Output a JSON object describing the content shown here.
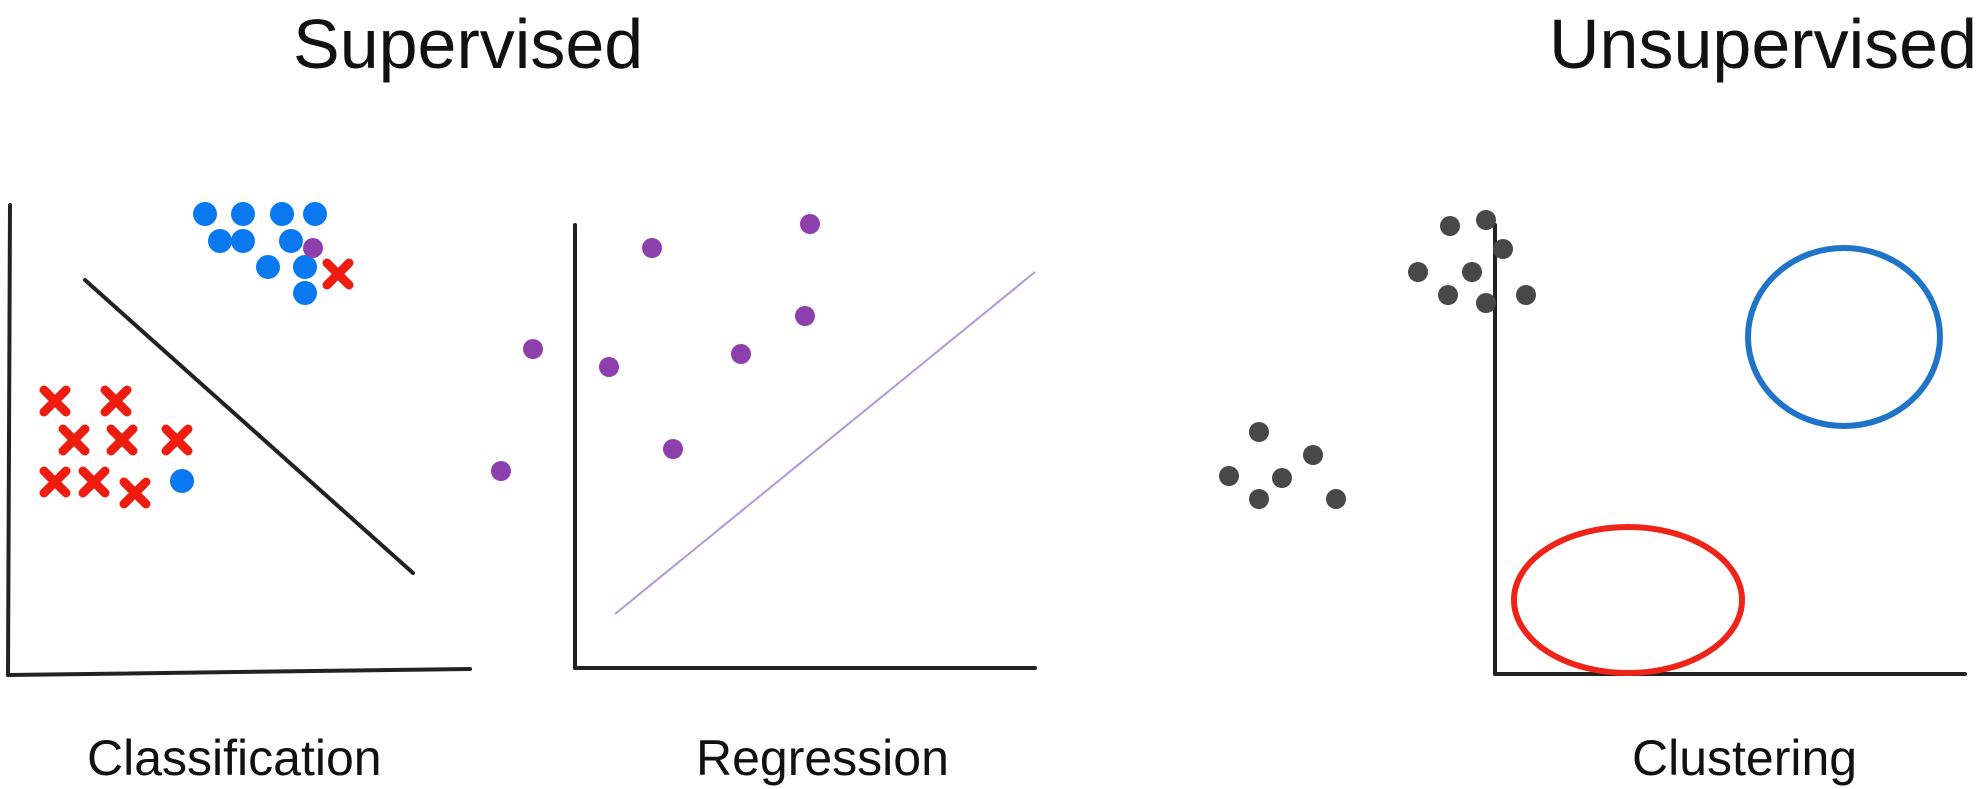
{
  "headings": {
    "supervised": "Supervised",
    "unsupervised": "Unsupervised"
  },
  "captions": {
    "classification": "Classification",
    "regression": "Regression",
    "clustering": "Clustering"
  },
  "colors": {
    "axis": "#222222",
    "blue_point": "#0a78ef",
    "red_cross": "#ee1c0e",
    "regression_point": "#8e3fae",
    "regression_line": "#b497d6",
    "cluster_point": "#484848",
    "cluster_ring_blue": "#1f74c8",
    "cluster_ring_red": "#ee2418"
  },
  "icons": {
    "class_a_marker": "filled-circle",
    "class_b_marker": "x-cross",
    "regression_marker": "filled-circle",
    "cluster_marker": "filled-circle",
    "cluster_boundary": "ellipse-outline"
  }
}
